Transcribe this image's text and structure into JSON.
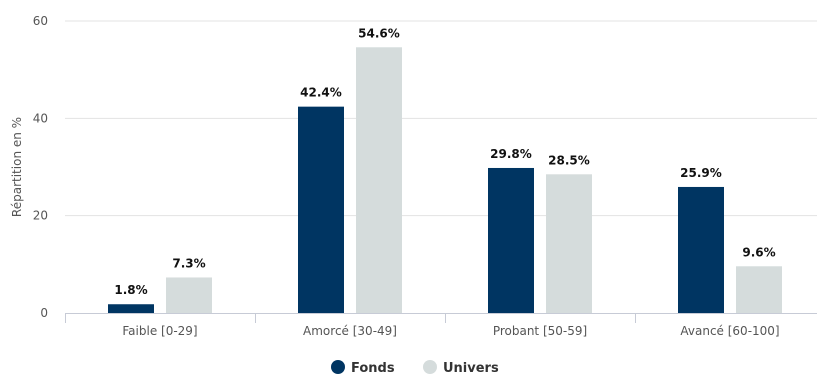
{
  "chart_data": {
    "type": "bar",
    "categories": [
      "Faible [0-29]",
      "Amorcé [30-49]",
      "Probant [50-59]",
      "Avancé [60-100]"
    ],
    "series": [
      {
        "name": "Fonds",
        "values": [
          1.8,
          42.4,
          29.8,
          25.9
        ],
        "labels": [
          "1.8%",
          "42.4%",
          "29.8%",
          "25.9%"
        ],
        "color": "#003562"
      },
      {
        "name": "Univers",
        "values": [
          7.3,
          54.6,
          28.5,
          9.6
        ],
        "labels": [
          "7.3%",
          "54.6%",
          "28.5%",
          "9.6%"
        ],
        "color": "#d5dcdc"
      }
    ],
    "ylabel": "Répartition en %",
    "xlabel": "",
    "ylim": [
      0,
      60
    ],
    "yticks": [
      0,
      20,
      40,
      60
    ],
    "grid": true,
    "legend": "bottom-center"
  }
}
